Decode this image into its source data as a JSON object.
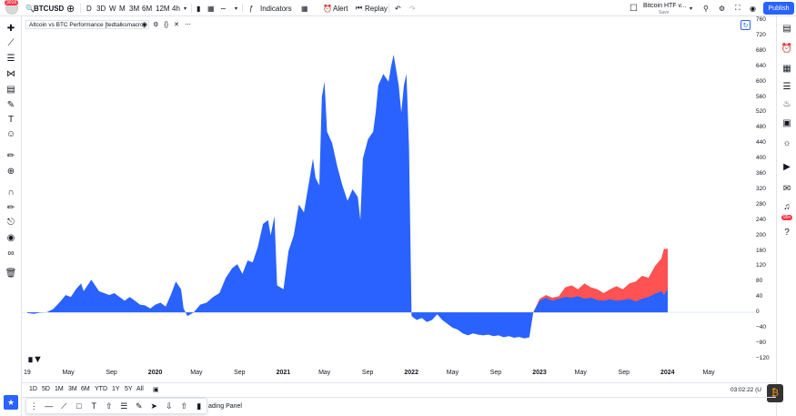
{
  "topbar": {
    "notification_count": "3016",
    "symbol": "BTCUSD",
    "timeframes": [
      "D",
      "3D",
      "W",
      "M",
      "3M",
      "6M",
      "12M",
      "4h"
    ],
    "indicators_label": "Indicators",
    "alert_label": "Alert",
    "replay_label": "Replay",
    "layout_name": "Bitcoin HTF v...",
    "layout_status": "Save",
    "publish_label": "Publish"
  },
  "legend": {
    "title": "Altcoin vs BTC Performance [tedtalksmacro]"
  },
  "colors": {
    "blue_area": "#2962ff",
    "red_area": "#ff5252",
    "accent": "#2962ff"
  },
  "right_toolbar": {
    "notifications_badge": "99+"
  },
  "chart_data": {
    "type": "area",
    "title": "Altcoin vs BTC Performance [tedtalksmacro]",
    "xlabel": "",
    "ylabel": "",
    "x_ticks": [
      "19",
      "May",
      "Sep",
      "2020",
      "May",
      "Sep",
      "2021",
      "May",
      "Sep",
      "2022",
      "May",
      "Sep",
      "2023",
      "May",
      "Sep",
      "2024",
      "May"
    ],
    "y_ticks": [
      760,
      720,
      680,
      640,
      600,
      560,
      520,
      480,
      440,
      400,
      360,
      320,
      280,
      240,
      200,
      160,
      120,
      80,
      40,
      0,
      -40,
      -80,
      -120
    ],
    "ylim": [
      -130,
      765
    ],
    "series": [
      {
        "values": [
          [
            2019.0,
            -2
          ],
          [
            2019.05,
            -4
          ],
          [
            2019.1,
            -1
          ],
          [
            2019.15,
            0
          ],
          [
            2019.2,
            8
          ],
          [
            2019.25,
            25
          ],
          [
            2019.3,
            45
          ],
          [
            2019.34,
            40
          ],
          [
            2019.38,
            60
          ],
          [
            2019.42,
            75
          ],
          [
            2019.44,
            55
          ],
          [
            2019.47,
            70
          ],
          [
            2019.5,
            85
          ],
          [
            2019.53,
            70
          ],
          [
            2019.56,
            55
          ],
          [
            2019.6,
            50
          ],
          [
            2019.64,
            45
          ],
          [
            2019.68,
            50
          ],
          [
            2019.72,
            40
          ],
          [
            2019.76,
            30
          ],
          [
            2019.8,
            40
          ],
          [
            2019.84,
            30
          ],
          [
            2019.88,
            20
          ],
          [
            2019.92,
            18
          ],
          [
            2019.96,
            10
          ],
          [
            2020.0,
            20
          ],
          [
            2020.04,
            25
          ],
          [
            2020.08,
            15
          ],
          [
            2020.12,
            45
          ],
          [
            2020.16,
            80
          ],
          [
            2020.2,
            60
          ],
          [
            2020.22,
            10
          ],
          [
            2020.25,
            -10
          ],
          [
            2020.3,
            0
          ],
          [
            2020.35,
            20
          ],
          [
            2020.4,
            25
          ],
          [
            2020.45,
            40
          ],
          [
            2020.5,
            50
          ],
          [
            2020.55,
            90
          ],
          [
            2020.6,
            115
          ],
          [
            2020.64,
            125
          ],
          [
            2020.68,
            100
          ],
          [
            2020.72,
            135
          ],
          [
            2020.76,
            130
          ],
          [
            2020.8,
            170
          ],
          [
            2020.84,
            230
          ],
          [
            2020.88,
            240
          ],
          [
            2020.9,
            200
          ],
          [
            2020.93,
            250
          ],
          [
            2020.95,
            70
          ],
          [
            2021.0,
            60
          ],
          [
            2021.04,
            160
          ],
          [
            2021.08,
            200
          ],
          [
            2021.12,
            280
          ],
          [
            2021.16,
            260
          ],
          [
            2021.2,
            340
          ],
          [
            2021.23,
            400
          ],
          [
            2021.25,
            350
          ],
          [
            2021.28,
            330
          ],
          [
            2021.3,
            560
          ],
          [
            2021.32,
            600
          ],
          [
            2021.34,
            470
          ],
          [
            2021.38,
            440
          ],
          [
            2021.42,
            380
          ],
          [
            2021.46,
            330
          ],
          [
            2021.5,
            290
          ],
          [
            2021.54,
            320
          ],
          [
            2021.58,
            300
          ],
          [
            2021.6,
            240
          ],
          [
            2021.62,
            400
          ],
          [
            2021.66,
            450
          ],
          [
            2021.7,
            470
          ],
          [
            2021.72,
            520
          ],
          [
            2021.74,
            590
          ],
          [
            2021.78,
            620
          ],
          [
            2021.82,
            600
          ],
          [
            2021.84,
            640
          ],
          [
            2021.86,
            670
          ],
          [
            2021.88,
            630
          ],
          [
            2021.9,
            590
          ],
          [
            2021.92,
            520
          ],
          [
            2021.94,
            590
          ],
          [
            2021.96,
            620
          ],
          [
            2021.98,
            430
          ],
          [
            2022.0,
            -10
          ],
          [
            2022.04,
            -20
          ],
          [
            2022.08,
            -15
          ],
          [
            2022.12,
            -25
          ],
          [
            2022.16,
            -20
          ],
          [
            2022.2,
            -5
          ],
          [
            2022.24,
            -20
          ],
          [
            2022.28,
            -30
          ],
          [
            2022.32,
            -40
          ],
          [
            2022.36,
            -45
          ],
          [
            2022.4,
            -55
          ],
          [
            2022.44,
            -60
          ],
          [
            2022.48,
            -55
          ],
          [
            2022.52,
            -58
          ],
          [
            2022.56,
            -60
          ],
          [
            2022.6,
            -58
          ],
          [
            2022.64,
            -62
          ],
          [
            2022.68,
            -60
          ],
          [
            2022.72,
            -65
          ],
          [
            2022.76,
            -62
          ],
          [
            2022.8,
            -66
          ],
          [
            2022.84,
            -64
          ],
          [
            2022.88,
            -68
          ],
          [
            2022.92,
            -65
          ],
          [
            2022.95,
            0
          ],
          [
            2023.0,
            30
          ],
          [
            2023.05,
            38
          ],
          [
            2023.1,
            30
          ],
          [
            2023.15,
            35
          ],
          [
            2023.2,
            40
          ],
          [
            2023.25,
            38
          ],
          [
            2023.3,
            42
          ],
          [
            2023.35,
            35
          ],
          [
            2023.4,
            38
          ],
          [
            2023.45,
            32
          ],
          [
            2023.5,
            30
          ],
          [
            2023.55,
            34
          ],
          [
            2023.6,
            30
          ],
          [
            2023.65,
            32
          ],
          [
            2023.7,
            35
          ],
          [
            2023.75,
            28
          ],
          [
            2023.8,
            35
          ],
          [
            2023.85,
            40
          ],
          [
            2023.9,
            48
          ],
          [
            2023.95,
            55
          ],
          [
            2023.97,
            45
          ],
          [
            2024.0,
            60
          ]
        ]
      },
      {
        "values": [
          [
            2022.95,
            0
          ],
          [
            2023.0,
            35
          ],
          [
            2023.05,
            45
          ],
          [
            2023.1,
            38
          ],
          [
            2023.15,
            42
          ],
          [
            2023.2,
            65
          ],
          [
            2023.25,
            70
          ],
          [
            2023.3,
            60
          ],
          [
            2023.35,
            75
          ],
          [
            2023.4,
            65
          ],
          [
            2023.45,
            60
          ],
          [
            2023.5,
            50
          ],
          [
            2023.55,
            60
          ],
          [
            2023.6,
            68
          ],
          [
            2023.65,
            60
          ],
          [
            2023.7,
            75
          ],
          [
            2023.75,
            80
          ],
          [
            2023.8,
            95
          ],
          [
            2023.85,
            90
          ],
          [
            2023.9,
            120
          ],
          [
            2023.95,
            140
          ],
          [
            2023.97,
            165
          ],
          [
            2024.0,
            165
          ]
        ]
      }
    ]
  },
  "time_labels": [
    "19",
    "May",
    "Sep",
    "2020",
    "May",
    "Sep",
    "2021",
    "May",
    "Sep",
    "2022",
    "May",
    "Sep",
    "2023",
    "May",
    "Sep",
    "2024",
    "May"
  ],
  "price_labels": [
    "760",
    "720",
    "680",
    "640",
    "600",
    "560",
    "520",
    "480",
    "440",
    "400",
    "360",
    "320",
    "280",
    "240",
    "200",
    "160",
    "120",
    "80",
    "40",
    "0",
    "−40",
    "−80",
    "−120"
  ],
  "range_bar": {
    "ranges": [
      "1D",
      "5D",
      "1M",
      "3M",
      "6M",
      "YTD",
      "1Y",
      "5Y",
      "All"
    ],
    "clock": "03:02:22 (U"
  },
  "bottom": {
    "trading_panel_label": "ading Panel"
  }
}
